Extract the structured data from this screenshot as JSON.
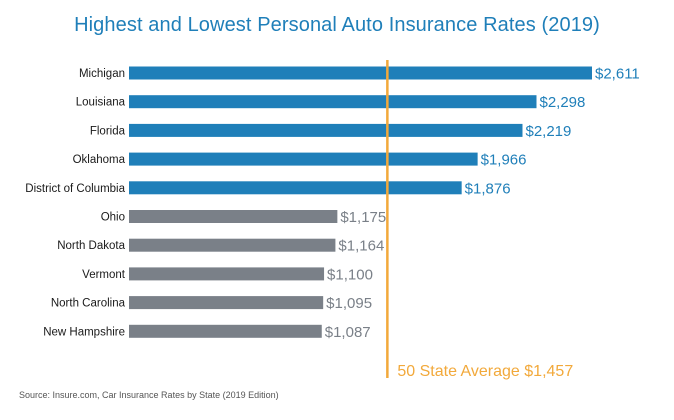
{
  "chart_data": {
    "type": "bar",
    "orientation": "horizontal",
    "title": "Highest and Lowest Personal Auto Insurance Rates (2019)",
    "categories": [
      "Michigan",
      "Louisiana",
      "Florida",
      "Oklahoma",
      "District of Columbia",
      "Ohio",
      "North Dakota",
      "Vermont",
      "North Carolina",
      "New Hampshire"
    ],
    "values": [
      2611,
      2298,
      2219,
      1966,
      1876,
      1175,
      1164,
      1100,
      1095,
      1087
    ],
    "value_labels": [
      "$2,611",
      "$2,298",
      "$2,219",
      "$1,966",
      "$1,876",
      "$1,175",
      "$1,164",
      "$1,100",
      "$1,095",
      "$1,087"
    ],
    "groups": [
      "highest",
      "highest",
      "highest",
      "highest",
      "highest",
      "lowest",
      "lowest",
      "lowest",
      "lowest",
      "lowest"
    ],
    "xlim": [
      0,
      2611
    ],
    "reference_line": {
      "value": 1457,
      "label": "50 State Average $1,457"
    },
    "source": "Source: Insure.com, Car Insurance Rates by State (2019 Edition)"
  },
  "colors": {
    "title": "#1f7fb9",
    "highest_bar": "#1f7fb9",
    "lowest_bar": "#7a8088",
    "average_line": "#f2a93b"
  }
}
